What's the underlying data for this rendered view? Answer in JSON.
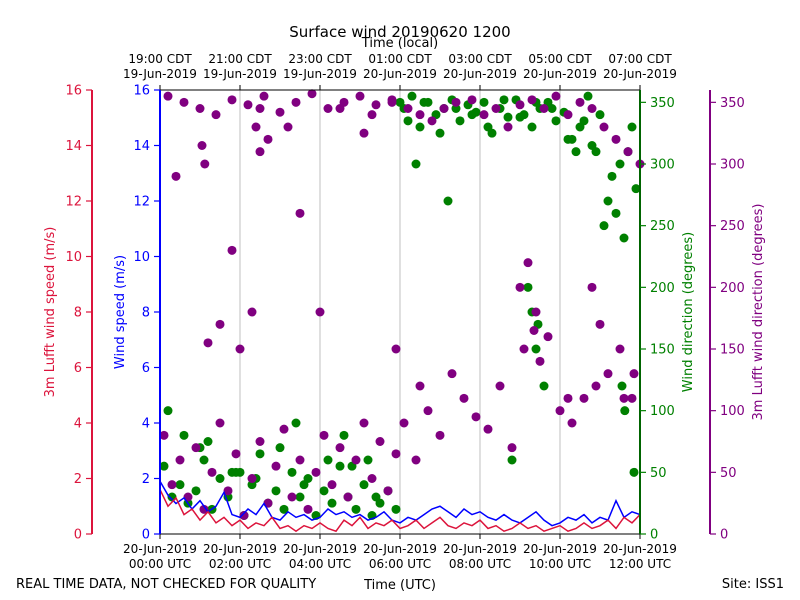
{
  "chart_data": {
    "type": "scatter",
    "title": "Surface wind 20190620 1200",
    "top_axis_title": "Time (local)",
    "xlabel": "Time (UTC)",
    "xlim": [
      0,
      12
    ],
    "x_unit": "hours since 20-Jun-2019 00:00 UTC",
    "utc_ticks": [
      {
        "x": 0,
        "line1": "20-Jun-2019",
        "line2": "00:00 UTC"
      },
      {
        "x": 2,
        "line1": "20-Jun-2019",
        "line2": "02:00 UTC"
      },
      {
        "x": 4,
        "line1": "20-Jun-2019",
        "line2": "04:00 UTC"
      },
      {
        "x": 6,
        "line1": "20-Jun-2019",
        "line2": "06:00 UTC"
      },
      {
        "x": 8,
        "line1": "20-Jun-2019",
        "line2": "08:00 UTC"
      },
      {
        "x": 10,
        "line1": "20-Jun-2019",
        "line2": "10:00 UTC"
      },
      {
        "x": 12,
        "line1": "20-Jun-2019",
        "line2": "12:00 UTC"
      }
    ],
    "local_ticks": [
      {
        "x": 0,
        "line1": "19:00 CDT",
        "line2": "19-Jun-2019"
      },
      {
        "x": 2,
        "line1": "21:00 CDT",
        "line2": "19-Jun-2019"
      },
      {
        "x": 4,
        "line1": "23:00 CDT",
        "line2": "19-Jun-2019"
      },
      {
        "x": 6,
        "line1": "01:00 CDT",
        "line2": "20-Jun-2019"
      },
      {
        "x": 8,
        "line1": "03:00 CDT",
        "line2": "20-Jun-2019"
      },
      {
        "x": 10,
        "line1": "05:00 CDT",
        "line2": "20-Jun-2019"
      },
      {
        "x": 12,
        "line1": "07:00 CDT",
        "line2": "20-Jun-2019"
      }
    ],
    "axes": {
      "lufft_speed": {
        "label": "3m Lufft wind speed (m/s)",
        "range": [
          0,
          16
        ],
        "ticks": [
          0,
          2,
          4,
          6,
          8,
          10,
          12,
          14,
          16
        ],
        "color": "#dc143c"
      },
      "speed": {
        "label": "Wind speed (m/s)",
        "range": [
          0,
          16
        ],
        "ticks": [
          0,
          2,
          4,
          6,
          8,
          10,
          12,
          14,
          16
        ],
        "color": "#0000ff"
      },
      "direction": {
        "label": "Wind direction (degrees)",
        "range": [
          0,
          360
        ],
        "ticks": [
          0,
          50,
          100,
          150,
          200,
          250,
          300,
          350
        ],
        "color": "#008000"
      },
      "lufft_direction": {
        "label": "3m Lufft wind direction (degrees)",
        "range": [
          0,
          360
        ],
        "ticks": [
          0,
          50,
          100,
          150,
          200,
          250,
          300,
          350
        ],
        "color": "#800080"
      }
    },
    "series": [
      {
        "name": "Wind speed",
        "kind": "line",
        "axis": "speed",
        "color": "#0000ff",
        "x": [
          0,
          0.2,
          0.4,
          0.6,
          0.8,
          1.0,
          1.2,
          1.4,
          1.6,
          1.8,
          2.0,
          2.2,
          2.4,
          2.6,
          2.8,
          3.0,
          3.2,
          3.4,
          3.6,
          3.8,
          4.0,
          4.2,
          4.4,
          4.6,
          4.8,
          5.0,
          5.2,
          5.4,
          5.6,
          5.8,
          6.0,
          6.2,
          6.4,
          6.6,
          6.8,
          7.0,
          7.2,
          7.4,
          7.6,
          7.8,
          8.0,
          8.2,
          8.4,
          8.6,
          8.8,
          9.0,
          9.2,
          9.4,
          9.6,
          9.8,
          10.0,
          10.2,
          10.4,
          10.6,
          10.8,
          11.0,
          11.2,
          11.4,
          11.6,
          11.8,
          12.0
        ],
        "y": [
          1.9,
          1.4,
          1.1,
          1.3,
          0.9,
          1.2,
          0.8,
          1.0,
          1.5,
          0.7,
          0.6,
          0.9,
          0.7,
          1.1,
          0.6,
          0.5,
          0.8,
          0.6,
          0.7,
          0.5,
          0.6,
          0.9,
          0.7,
          0.8,
          0.6,
          0.7,
          0.5,
          0.6,
          0.8,
          0.5,
          0.4,
          0.6,
          0.5,
          0.7,
          0.9,
          1.0,
          0.8,
          0.6,
          0.9,
          0.7,
          0.8,
          0.6,
          0.5,
          0.7,
          0.5,
          0.4,
          0.6,
          0.8,
          0.5,
          0.3,
          0.4,
          0.6,
          0.5,
          0.7,
          0.4,
          0.6,
          0.5,
          1.2,
          0.6,
          0.8,
          0.7
        ]
      },
      {
        "name": "3m Lufft wind speed",
        "kind": "line",
        "axis": "lufft_speed",
        "color": "#dc143c",
        "x": [
          0,
          0.2,
          0.4,
          0.6,
          0.8,
          1.0,
          1.2,
          1.4,
          1.6,
          1.8,
          2.0,
          2.2,
          2.4,
          2.6,
          2.8,
          3.0,
          3.2,
          3.4,
          3.6,
          3.8,
          4.0,
          4.2,
          4.4,
          4.6,
          4.8,
          5.0,
          5.2,
          5.4,
          5.6,
          5.8,
          6.0,
          6.2,
          6.4,
          6.6,
          6.8,
          7.0,
          7.2,
          7.4,
          7.6,
          7.8,
          8.0,
          8.2,
          8.4,
          8.6,
          8.8,
          9.0,
          9.2,
          9.4,
          9.6,
          9.8,
          10.0,
          10.2,
          10.4,
          10.6,
          10.8,
          11.0,
          11.2,
          11.4,
          11.6,
          11.8,
          12.0
        ],
        "y": [
          1.6,
          1.0,
          1.3,
          0.7,
          0.9,
          0.5,
          0.8,
          0.4,
          0.6,
          0.3,
          0.5,
          0.2,
          0.4,
          0.3,
          0.6,
          0.2,
          0.3,
          0.1,
          0.3,
          0.2,
          0.4,
          0.2,
          0.1,
          0.5,
          0.3,
          0.6,
          0.2,
          0.4,
          0.3,
          0.5,
          0.2,
          0.3,
          0.5,
          0.2,
          0.4,
          0.6,
          0.3,
          0.2,
          0.4,
          0.3,
          0.5,
          0.2,
          0.3,
          0.1,
          0.2,
          0.4,
          0.2,
          0.3,
          0.1,
          0.2,
          0.3,
          0.1,
          0.2,
          0.4,
          0.2,
          0.3,
          0.5,
          0.2,
          0.6,
          0.4,
          0.7
        ]
      },
      {
        "name": "Wind direction",
        "kind": "scatter",
        "axis": "direction",
        "color": "#008000",
        "x": [
          0.1,
          0.3,
          0.5,
          0.7,
          0.9,
          1.1,
          1.3,
          1.5,
          1.7,
          1.9,
          2.1,
          2.3,
          2.5,
          2.7,
          2.9,
          3.1,
          3.3,
          3.5,
          3.7,
          3.9,
          4.1,
          4.3,
          4.5,
          4.7,
          4.9,
          5.1,
          5.3,
          5.5,
          5.7,
          5.9,
          0.6,
          1.2,
          1.8,
          2.4,
          3.0,
          3.6,
          4.2,
          4.8,
          5.4,
          6.0,
          6.1,
          6.3,
          6.5,
          6.7,
          6.9,
          7.1,
          7.3,
          7.5,
          7.7,
          7.9,
          8.1,
          8.3,
          8.5,
          8.7,
          8.9,
          9.1,
          9.3,
          9.5,
          9.7,
          9.9,
          10.1,
          10.3,
          10.5,
          10.7,
          10.9,
          6.2,
          6.6,
          7.0,
          7.4,
          7.8,
          8.2,
          8.6,
          9.0,
          9.4,
          9.8,
          10.2,
          10.6,
          11.0,
          11.1,
          11.3,
          11.5,
          11.7,
          11.9,
          11.2,
          11.4,
          11.6,
          11.8,
          6.4,
          7.2,
          8.8,
          9.6,
          10.4,
          10.8,
          5.2,
          4.6,
          3.4,
          2.0,
          1.0,
          0.2,
          9.2,
          9.3,
          9.4,
          9.45,
          11.55,
          11.62,
          11.85
        ],
        "y": [
          55,
          30,
          40,
          25,
          35,
          60,
          20,
          45,
          30,
          50,
          15,
          40,
          65,
          25,
          35,
          20,
          50,
          30,
          45,
          15,
          35,
          25,
          55,
          30,
          20,
          40,
          15,
          25,
          35,
          20,
          80,
          75,
          50,
          45,
          70,
          40,
          60,
          55,
          30,
          350,
          345,
          355,
          330,
          350,
          340,
          345,
          352,
          335,
          348,
          342,
          350,
          325,
          345,
          338,
          352,
          340,
          330,
          345,
          350,
          335,
          342,
          320,
          330,
          355,
          310,
          335,
          350,
          325,
          345,
          340,
          330,
          352,
          338,
          350,
          345,
          320,
          335,
          340,
          250,
          290,
          300,
          310,
          280,
          270,
          260,
          240,
          330,
          300,
          270,
          60,
          120,
          310,
          315,
          60,
          80,
          90,
          50,
          70,
          100,
          200,
          180,
          150,
          170,
          120,
          100,
          50
        ],
        "marker_r": 4.5
      },
      {
        "name": "3m Lufft wind direction",
        "kind": "scatter",
        "axis": "lufft_direction",
        "color": "#800080",
        "x": [
          0.1,
          0.3,
          0.5,
          0.7,
          0.9,
          1.1,
          1.3,
          1.5,
          1.7,
          1.9,
          2.1,
          2.3,
          2.5,
          2.7,
          2.9,
          3.1,
          3.3,
          3.5,
          3.7,
          3.9,
          4.1,
          4.3,
          4.5,
          4.7,
          4.9,
          5.1,
          5.3,
          5.5,
          5.7,
          5.9,
          0.2,
          0.6,
          1.0,
          1.4,
          1.8,
          2.2,
          2.6,
          3.0,
          3.4,
          3.8,
          4.2,
          4.6,
          5.0,
          5.4,
          5.8,
          1.05,
          1.12,
          2.5,
          2.7,
          3.2,
          4.5,
          5.1,
          5.3,
          5.8,
          6.2,
          6.5,
          6.8,
          7.1,
          7.4,
          7.8,
          8.1,
          8.4,
          8.7,
          9.0,
          9.3,
          9.6,
          9.9,
          10.2,
          10.5,
          10.8,
          11.1,
          11.4,
          11.7,
          12.0,
          6.1,
          6.4,
          6.7,
          7.0,
          7.3,
          7.6,
          7.9,
          8.2,
          8.5,
          8.8,
          9.1,
          9.4,
          9.7,
          10.0,
          10.3,
          10.6,
          10.9,
          11.2,
          11.5,
          11.8,
          1.2,
          1.5,
          1.8,
          2.0,
          2.3,
          2.4,
          2.5,
          0.4,
          3.5,
          4.0,
          5.9,
          6.5,
          9.0,
          9.2,
          9.35,
          9.5,
          10.2,
          10.8,
          11.0,
          11.6,
          11.85
        ],
        "y": [
          80,
          40,
          60,
          30,
          70,
          20,
          50,
          90,
          35,
          65,
          15,
          45,
          75,
          25,
          55,
          85,
          30,
          60,
          20,
          50,
          80,
          40,
          70,
          30,
          60,
          90,
          45,
          75,
          35,
          65,
          355,
          350,
          345,
          340,
          352,
          348,
          355,
          342,
          350,
          357,
          345,
          350,
          355,
          348,
          352,
          315,
          300,
          345,
          320,
          330,
          345,
          325,
          340,
          350,
          345,
          340,
          335,
          345,
          350,
          352,
          340,
          345,
          330,
          348,
          352,
          345,
          355,
          340,
          350,
          345,
          330,
          320,
          310,
          300,
          90,
          60,
          100,
          80,
          130,
          110,
          95,
          85,
          120,
          70,
          150,
          180,
          160,
          100,
          90,
          110,
          120,
          130,
          150,
          110,
          155,
          170,
          230,
          150,
          180,
          330,
          310,
          290,
          260,
          180,
          150,
          120,
          200,
          220,
          165,
          140,
          110,
          200,
          170,
          110,
          130
        ],
        "marker_r": 4.5
      }
    ]
  },
  "footer": {
    "left_note": "REAL TIME DATA, NOT CHECKED FOR QUALITY",
    "site": "Site: ISS1"
  }
}
